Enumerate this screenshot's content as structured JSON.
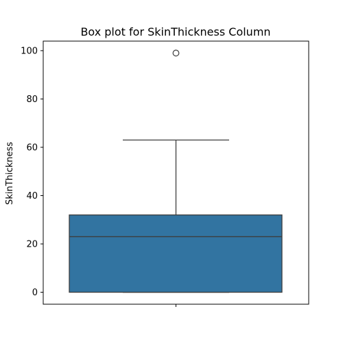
{
  "chart_data": {
    "type": "box",
    "title": "Box plot for SkinThickness Column",
    "xlabel": "",
    "ylabel": "SkinThickness",
    "ylim": [
      -4.95,
      103.95
    ],
    "yticks": [
      0,
      20,
      40,
      60,
      80,
      100
    ],
    "ytick_labels": [
      "0",
      "20",
      "40",
      "60",
      "80",
      "100"
    ],
    "xticks": [
      ""
    ],
    "box": {
      "min": 0,
      "q1": 0,
      "median": 23,
      "q3": 32,
      "whisker_low": 0,
      "whisker_high": 63,
      "outliers": [
        99
      ]
    },
    "grid": false,
    "colors": {
      "box_fill": "#3274a1",
      "line": "#3d3d3d",
      "outlier_edge": "#3d3d3d"
    }
  }
}
